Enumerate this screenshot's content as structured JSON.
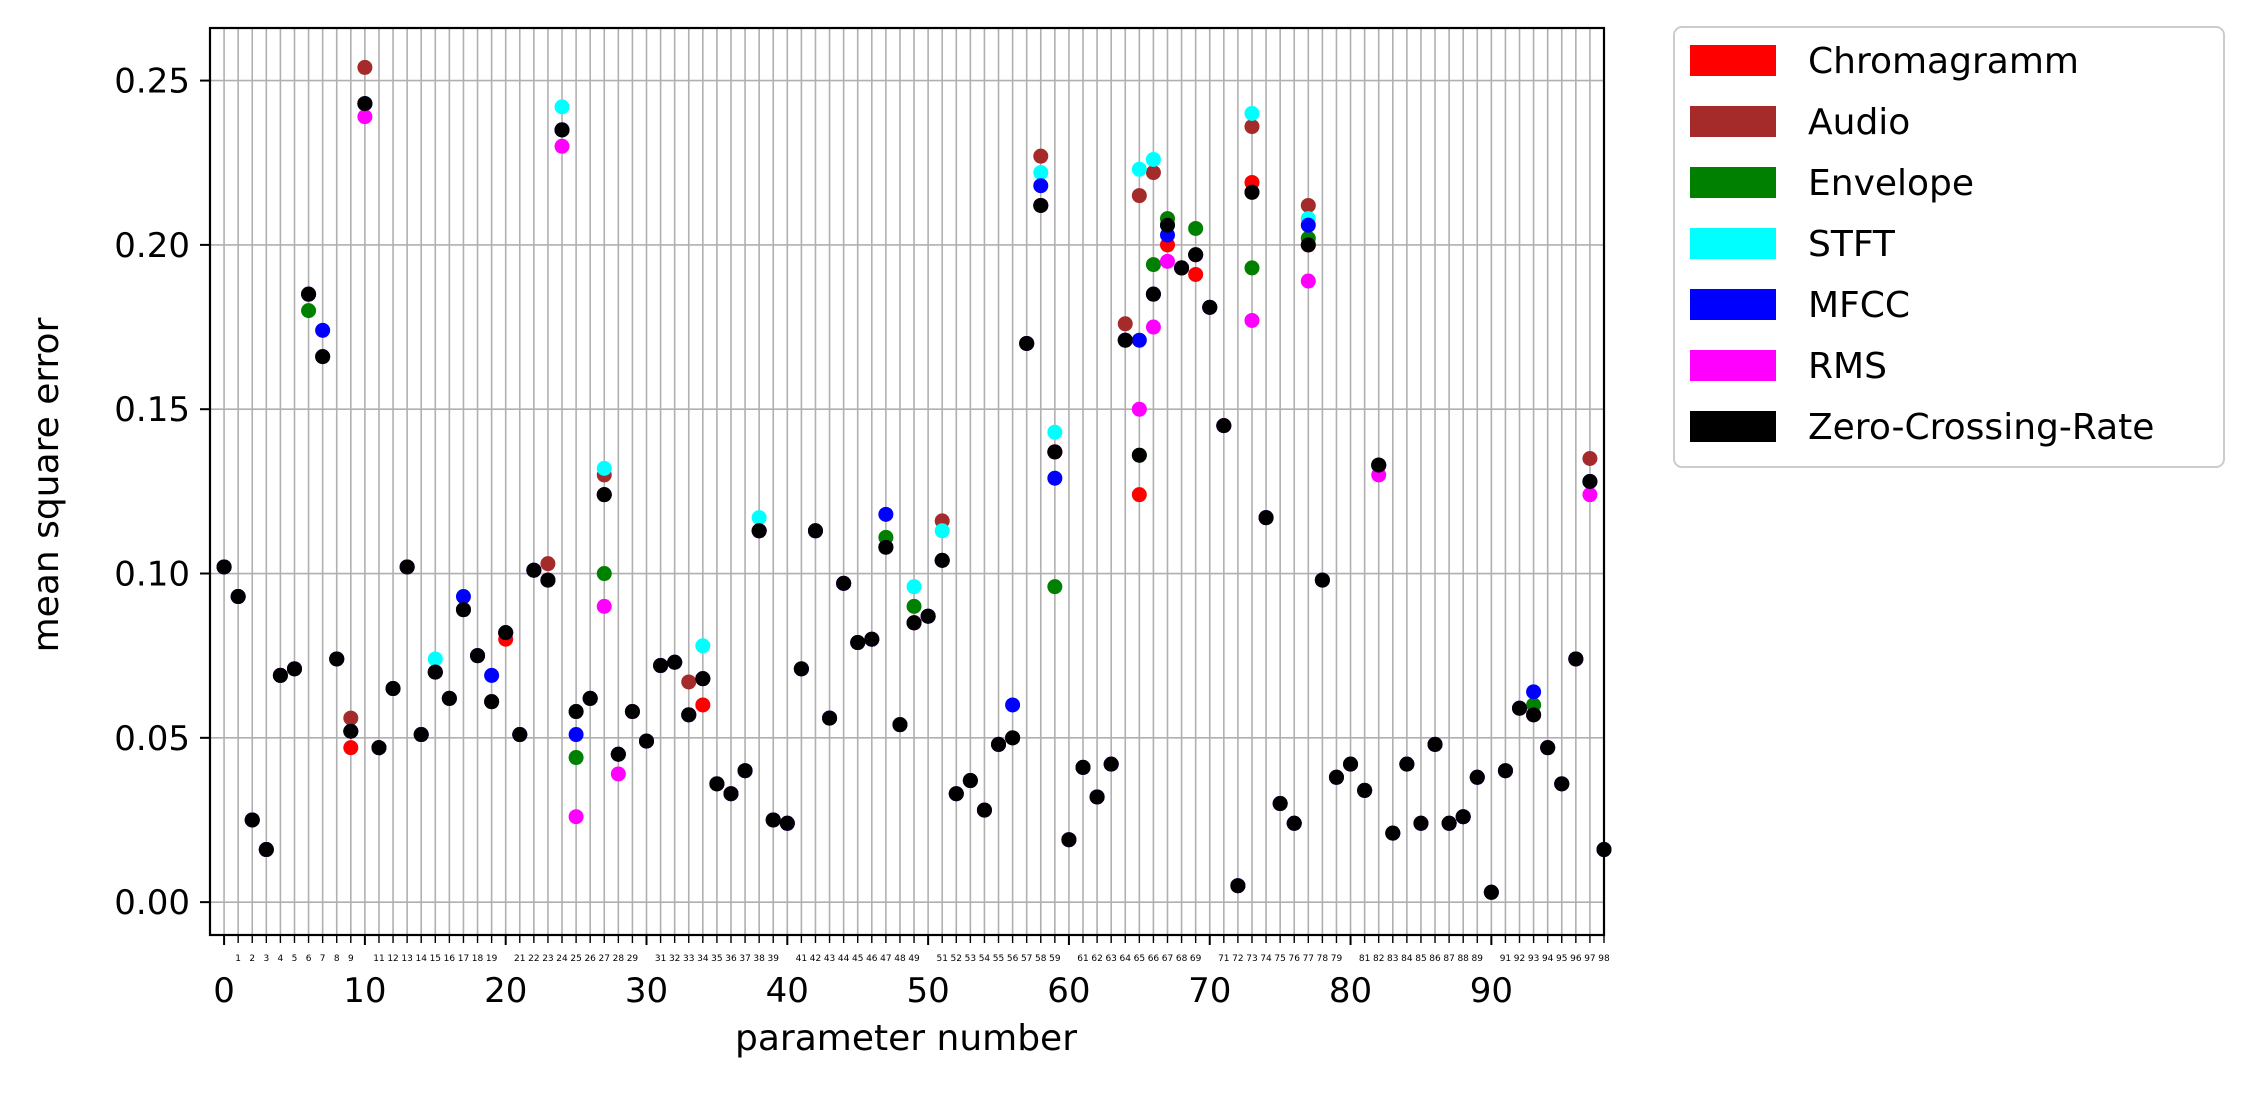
{
  "chart_data": {
    "type": "scatter",
    "title": "",
    "xlabel": "parameter number",
    "ylabel": "mean square error",
    "xlim": [
      -1,
      98
    ],
    "ylim": [
      -0.01,
      0.266
    ],
    "grid": true,
    "legend_location": "outside upper right",
    "major_x_ticks": [
      0,
      10,
      20,
      30,
      40,
      50,
      60,
      70,
      80,
      90
    ],
    "major_x_tick_labels": [
      "0",
      "10",
      "20",
      "30",
      "40",
      "50",
      "60",
      "70",
      "80",
      "90"
    ],
    "minor_x_ticks": [
      1,
      2,
      3,
      4,
      5,
      6,
      7,
      8,
      9,
      11,
      12,
      13,
      14,
      15,
      16,
      17,
      18,
      19,
      21,
      22,
      23,
      24,
      25,
      26,
      27,
      28,
      29,
      31,
      32,
      33,
      34,
      35,
      36,
      37,
      38,
      39,
      41,
      42,
      43,
      44,
      45,
      46,
      47,
      48,
      49,
      51,
      52,
      53,
      54,
      55,
      56,
      57,
      58,
      59,
      61,
      62,
      63,
      64,
      65,
      66,
      67,
      68,
      69,
      71,
      72,
      73,
      74,
      75,
      76,
      77,
      78,
      79,
      81,
      82,
      83,
      84,
      85,
      86,
      87,
      88,
      89,
      91,
      92,
      93,
      94,
      95,
      96,
      97,
      98
    ],
    "minor_x_tick_labels": [
      "1",
      "2",
      "3",
      "4",
      "5",
      "6",
      "7",
      "8",
      "9",
      "11",
      "12",
      "13",
      "14",
      "15",
      "16",
      "17",
      "18",
      "19",
      "21",
      "22",
      "23",
      "24",
      "25",
      "26",
      "27",
      "28",
      "29",
      "31",
      "32",
      "33",
      "34",
      "35",
      "36",
      "37",
      "38",
      "39",
      "41",
      "42",
      "43",
      "44",
      "45",
      "46",
      "47",
      "48",
      "49",
      "51",
      "52",
      "53",
      "54",
      "55",
      "56",
      "57",
      "58",
      "59",
      "61",
      "62",
      "63",
      "64",
      "65",
      "66",
      "67",
      "68",
      "69",
      "71",
      "72",
      "73",
      "74",
      "75",
      "76",
      "77",
      "78",
      "79",
      "81",
      "82",
      "83",
      "84",
      "85",
      "86",
      "87",
      "88",
      "89",
      "91",
      "92",
      "93",
      "94",
      "95",
      "96",
      "97",
      "98"
    ],
    "y_ticks": [
      0.0,
      0.05,
      0.1,
      0.15,
      0.2,
      0.25
    ],
    "y_tick_labels": [
      "0.00",
      "0.05",
      "0.10",
      "0.15",
      "0.20",
      "0.25"
    ],
    "x": [
      0,
      1,
      2,
      3,
      4,
      5,
      6,
      7,
      8,
      9,
      10,
      11,
      12,
      13,
      14,
      15,
      16,
      17,
      18,
      19,
      20,
      21,
      22,
      23,
      24,
      25,
      26,
      27,
      28,
      29,
      30,
      31,
      32,
      33,
      34,
      35,
      36,
      37,
      38,
      39,
      40,
      41,
      42,
      43,
      44,
      45,
      46,
      47,
      48,
      49,
      50,
      51,
      52,
      53,
      54,
      55,
      56,
      57,
      58,
      59,
      60,
      61,
      62,
      63,
      64,
      65,
      66,
      67,
      68,
      69,
      70,
      71,
      72,
      73,
      74,
      75,
      76,
      77,
      78,
      79,
      80,
      81,
      82,
      83,
      84,
      85,
      86,
      87,
      88,
      89,
      90,
      91,
      92,
      93,
      94,
      95,
      96,
      97,
      98
    ],
    "base": [
      0.102,
      0.093,
      0.025,
      0.016,
      0.069,
      0.071,
      0.185,
      0.166,
      0.074,
      0.052,
      0.243,
      0.047,
      0.065,
      0.102,
      0.051,
      0.07,
      0.062,
      0.089,
      0.075,
      0.061,
      0.082,
      0.051,
      0.101,
      0.098,
      0.235,
      0.058,
      0.062,
      0.124,
      0.045,
      0.058,
      0.049,
      0.072,
      0.073,
      0.057,
      0.068,
      0.036,
      0.033,
      0.04,
      0.113,
      0.025,
      0.024,
      0.071,
      0.113,
      0.056,
      0.097,
      0.079,
      0.08,
      0.108,
      0.054,
      0.085,
      0.087,
      0.104,
      0.033,
      0.037,
      0.028,
      0.048,
      0.05,
      0.17,
      0.212,
      0.137,
      0.019,
      0.041,
      0.032,
      0.042,
      0.171,
      0.136,
      0.185,
      0.206,
      0.193,
      0.197,
      0.181,
      0.145,
      0.005,
      0.216,
      0.117,
      0.03,
      0.024,
      0.2,
      0.098,
      0.038,
      0.042,
      0.034,
      0.133,
      0.021,
      0.042,
      0.024,
      0.048,
      0.024,
      0.026,
      0.038,
      0.003,
      0.04,
      0.059,
      0.057,
      0.047,
      0.036,
      0.074,
      0.128,
      0.016
    ],
    "series": [
      {
        "name": "Chromagramm",
        "color": "#ff0000",
        "offsets": {
          "9": -0.005,
          "20": -0.002,
          "34": -0.008,
          "58": 0.0,
          "65": -0.012,
          "67": -0.006,
          "69": -0.006,
          "73": 0.003
        }
      },
      {
        "name": "Audio",
        "color": "#a52a2a",
        "offsets": {
          "9": 0.004,
          "10": 0.011,
          "23": 0.005,
          "27": 0.006,
          "33": 0.01,
          "51": 0.012,
          "58": 0.015,
          "64": 0.005,
          "65": 0.079,
          "66": 0.037,
          "73": 0.02,
          "77": 0.012,
          "97": 0.007
        }
      },
      {
        "name": "Envelope",
        "color": "#008000",
        "offsets": {
          "6": -0.005,
          "25": -0.014,
          "27": -0.024,
          "47": 0.003,
          "49": 0.005,
          "59": -0.041,
          "66": 0.009,
          "67": 0.002,
          "69": 0.008,
          "73": -0.023,
          "77": 0.002,
          "93": 0.003
        }
      },
      {
        "name": "STFT",
        "color": "#00ffff",
        "offsets": {
          "15": 0.004,
          "24": 0.007,
          "27": 0.008,
          "34": 0.01,
          "38": 0.004,
          "49": 0.011,
          "51": 0.009,
          "58": 0.01,
          "59": 0.006,
          "65": 0.087,
          "66": 0.041,
          "73": 0.024,
          "77": 0.008
        }
      },
      {
        "name": "MFCC",
        "color": "#0000ff",
        "offsets": {
          "7": 0.008,
          "17": 0.004,
          "19": 0.008,
          "25": -0.007,
          "47": 0.01,
          "56": 0.01,
          "58": 0.006,
          "59": -0.008,
          "65": 0.035,
          "67": -0.003,
          "77": 0.006,
          "93": 0.007
        }
      },
      {
        "name": "RMS",
        "color": "#ff00ff",
        "offsets": {
          "10": -0.004,
          "24": -0.005,
          "25": -0.032,
          "27": -0.034,
          "28": -0.006,
          "65": 0.014,
          "66": -0.01,
          "67": -0.011,
          "73": -0.039,
          "77": -0.011,
          "82": -0.003,
          "97": -0.004
        }
      },
      {
        "name": "Zero-Crossing-Rate",
        "color": "#000000",
        "offsets": {}
      }
    ]
  }
}
